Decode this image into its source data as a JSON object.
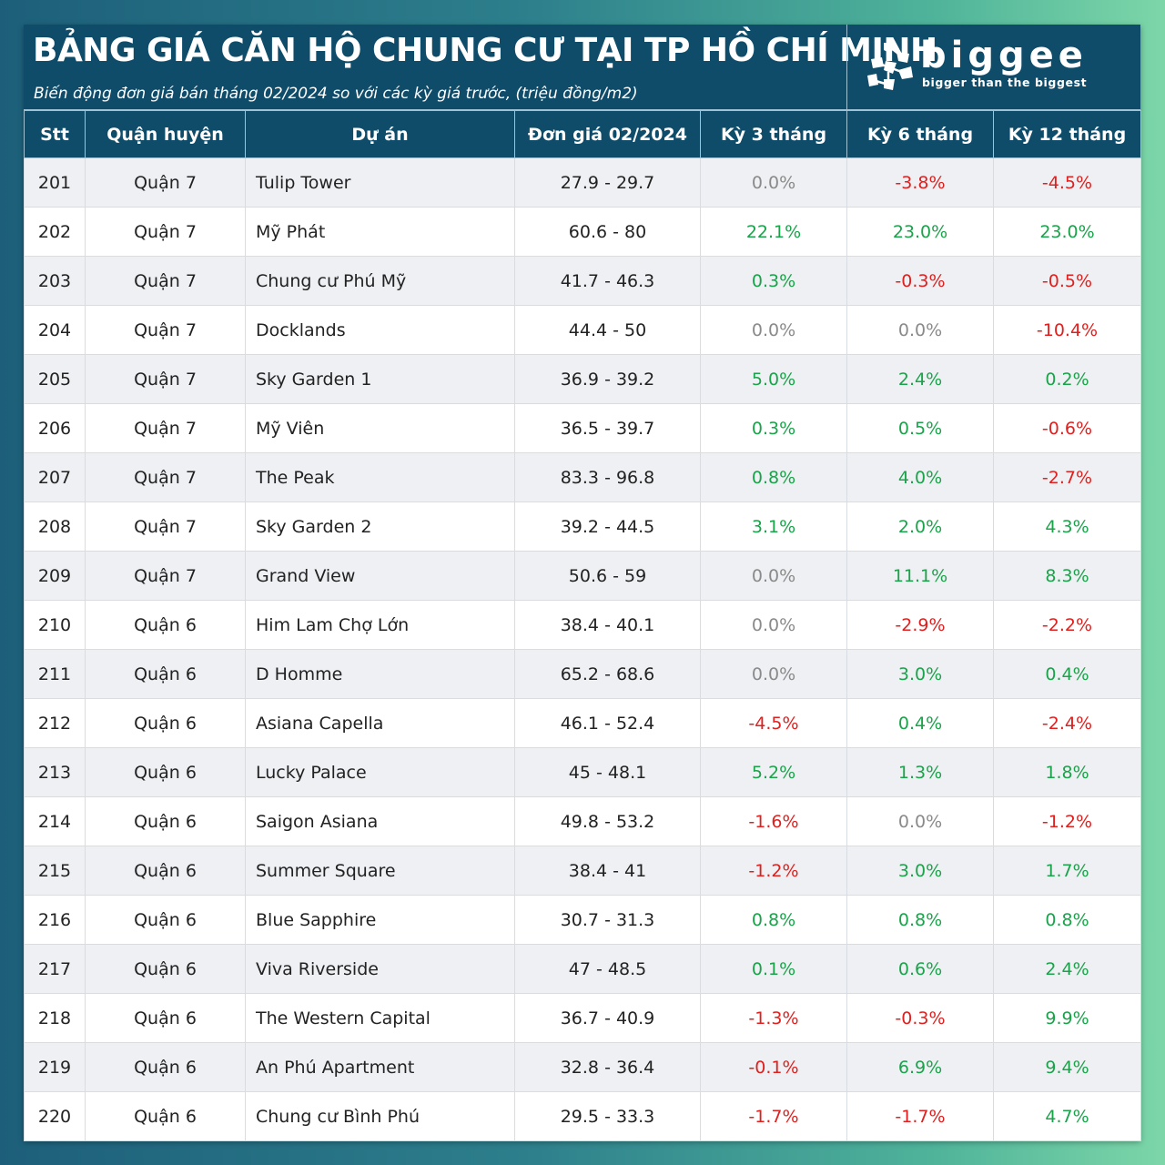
{
  "header": {
    "title": "BẢNG GIÁ CĂN HỘ CHUNG CƯ TẠI TP HỒ CHÍ MINH",
    "subtitle": "Biến động đơn giá bán tháng 02/2024 so với các kỳ giá trước, (triệu đồng/m2)"
  },
  "logo": {
    "brand": "biggee",
    "tagline": "bigger than the biggest",
    "icon": "biggee-logo-icon"
  },
  "colors": {
    "header_bg": "#0f4c6a",
    "positive": "#1aa34a",
    "negative": "#e0201e",
    "neutral": "#8a8a8a",
    "row_alt": "#eef0f3"
  },
  "table": {
    "columns": [
      "Stt",
      "Quận huyện",
      "Dự án",
      "Đơn giá 02/2024",
      "Kỳ 3 tháng",
      "Kỳ 6 tháng",
      "Kỳ 12 tháng"
    ],
    "rows": [
      {
        "stt": "201",
        "district": "Quận 7",
        "project": "Tulip Tower",
        "price": "27.9 - 29.7",
        "k3": "0.0%",
        "k6": "-3.8%",
        "k12": "-4.5%"
      },
      {
        "stt": "202",
        "district": "Quận 7",
        "project": "Mỹ Phát",
        "price": "60.6 - 80",
        "k3": "22.1%",
        "k6": "23.0%",
        "k12": "23.0%"
      },
      {
        "stt": "203",
        "district": "Quận 7",
        "project": "Chung cư Phú Mỹ",
        "price": "41.7 - 46.3",
        "k3": "0.3%",
        "k6": "-0.3%",
        "k12": "-0.5%"
      },
      {
        "stt": "204",
        "district": "Quận 7",
        "project": "Docklands",
        "price": "44.4 - 50",
        "k3": "0.0%",
        "k6": "0.0%",
        "k12": "-10.4%"
      },
      {
        "stt": "205",
        "district": "Quận 7",
        "project": "Sky Garden 1",
        "price": "36.9 - 39.2",
        "k3": "5.0%",
        "k6": "2.4%",
        "k12": "0.2%"
      },
      {
        "stt": "206",
        "district": "Quận 7",
        "project": "Mỹ Viên",
        "price": "36.5 - 39.7",
        "k3": "0.3%",
        "k6": "0.5%",
        "k12": "-0.6%"
      },
      {
        "stt": "207",
        "district": "Quận 7",
        "project": "The Peak",
        "price": "83.3 - 96.8",
        "k3": "0.8%",
        "k6": "4.0%",
        "k12": "-2.7%"
      },
      {
        "stt": "208",
        "district": "Quận 7",
        "project": "Sky Garden 2",
        "price": "39.2 - 44.5",
        "k3": "3.1%",
        "k6": "2.0%",
        "k12": "4.3%"
      },
      {
        "stt": "209",
        "district": "Quận 7",
        "project": "Grand View",
        "price": "50.6 - 59",
        "k3": "0.0%",
        "k6": "11.1%",
        "k12": "8.3%"
      },
      {
        "stt": "210",
        "district": "Quận 6",
        "project": "Him Lam Chợ Lớn",
        "price": "38.4 - 40.1",
        "k3": "0.0%",
        "k6": "-2.9%",
        "k12": "-2.2%"
      },
      {
        "stt": "211",
        "district": "Quận 6",
        "project": "D Homme",
        "price": "65.2 - 68.6",
        "k3": "0.0%",
        "k6": "3.0%",
        "k12": "0.4%"
      },
      {
        "stt": "212",
        "district": "Quận 6",
        "project": "Asiana Capella",
        "price": "46.1 - 52.4",
        "k3": "-4.5%",
        "k6": "0.4%",
        "k12": "-2.4%"
      },
      {
        "stt": "213",
        "district": "Quận 6",
        "project": "Lucky Palace",
        "price": "45 - 48.1",
        "k3": "5.2%",
        "k6": "1.3%",
        "k12": "1.8%"
      },
      {
        "stt": "214",
        "district": "Quận 6",
        "project": "Saigon Asiana",
        "price": "49.8 - 53.2",
        "k3": "-1.6%",
        "k6": "0.0%",
        "k12": "-1.2%"
      },
      {
        "stt": "215",
        "district": "Quận 6",
        "project": "Summer Square",
        "price": "38.4 - 41",
        "k3": "-1.2%",
        "k6": "3.0%",
        "k12": "1.7%"
      },
      {
        "stt": "216",
        "district": "Quận 6",
        "project": "Blue Sapphire",
        "price": "30.7 - 31.3",
        "k3": "0.8%",
        "k6": "0.8%",
        "k12": "0.8%"
      },
      {
        "stt": "217",
        "district": "Quận 6",
        "project": "Viva Riverside",
        "price": "47 - 48.5",
        "k3": "0.1%",
        "k6": "0.6%",
        "k12": "2.4%"
      },
      {
        "stt": "218",
        "district": "Quận 6",
        "project": "The Western Capital",
        "price": "36.7 - 40.9",
        "k3": "-1.3%",
        "k6": "-0.3%",
        "k12": "9.9%"
      },
      {
        "stt": "219",
        "district": "Quận 6",
        "project": "An Phú Apartment",
        "price": "32.8 - 36.4",
        "k3": "-0.1%",
        "k6": "6.9%",
        "k12": "9.4%"
      },
      {
        "stt": "220",
        "district": "Quận 6",
        "project": "Chung cư Bình Phú",
        "price": "29.5 - 33.3",
        "k3": "-1.7%",
        "k6": "-1.7%",
        "k12": "4.7%"
      }
    ]
  }
}
